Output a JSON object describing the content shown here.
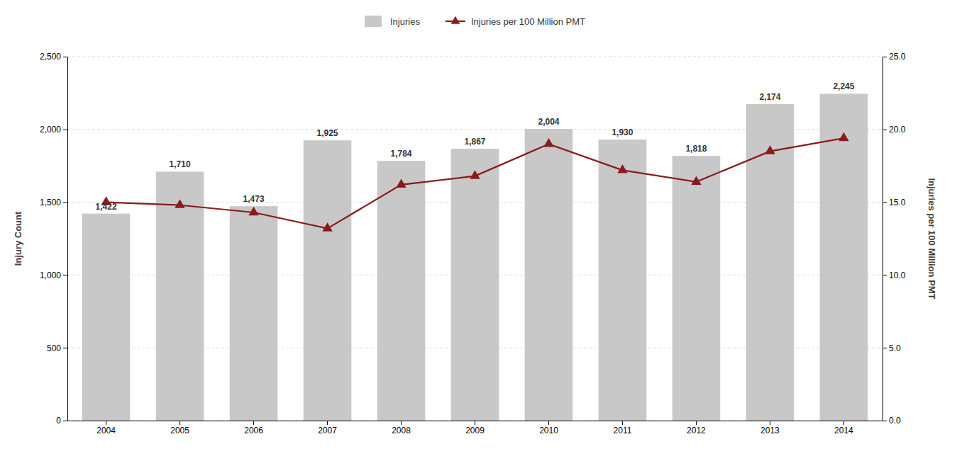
{
  "chart_data": {
    "type": "bar",
    "categories": [
      "2004",
      "2005",
      "2006",
      "2007",
      "2008",
      "2009",
      "2010",
      "2011",
      "2012",
      "2013",
      "2014"
    ],
    "series": [
      {
        "name": "Injuries",
        "type": "bar",
        "color": "#c8c8c8",
        "values": [
          1422,
          1710,
          1473,
          1925,
          1784,
          1867,
          2004,
          1930,
          1818,
          2174,
          2245
        ],
        "value_labels": [
          "1,422",
          "1,710",
          "1,473",
          "1,925",
          "1,784",
          "1,867",
          "2,004",
          "1,930",
          "1,818",
          "2,174",
          "2,245"
        ]
      },
      {
        "name": "Injuries per 100 Million PMT",
        "type": "line",
        "color": "#8b1a1a",
        "marker": "triangle",
        "axis": "y2",
        "values": [
          15.0,
          14.8,
          14.3,
          13.2,
          16.2,
          16.8,
          19.0,
          17.2,
          16.4,
          18.5,
          19.4
        ]
      }
    ],
    "ylabel": "Injury Count",
    "y2label": "Injuries per 100 Million PMT",
    "ylim": [
      0,
      2500
    ],
    "yticks": [
      0,
      500,
      {
        "value": 1000,
        "label": "1,000"
      },
      {
        "value": 1500,
        "label": "1,500"
      },
      {
        "value": 2000,
        "label": "2,000"
      },
      {
        "value": 2500,
        "label": "2,500"
      }
    ],
    "y2lim": [
      0,
      25
    ],
    "y2ticks": [
      {
        "value": 0,
        "label": "0.0"
      },
      {
        "value": 5,
        "label": "5.0"
      },
      {
        "value": 10,
        "label": "10.0"
      },
      {
        "value": 15,
        "label": "15.0"
      },
      {
        "value": 20,
        "label": "20.0"
      },
      {
        "value": 25,
        "label": "25.0"
      }
    ],
    "grid": true,
    "legend": "top",
    "data_labels": true
  }
}
